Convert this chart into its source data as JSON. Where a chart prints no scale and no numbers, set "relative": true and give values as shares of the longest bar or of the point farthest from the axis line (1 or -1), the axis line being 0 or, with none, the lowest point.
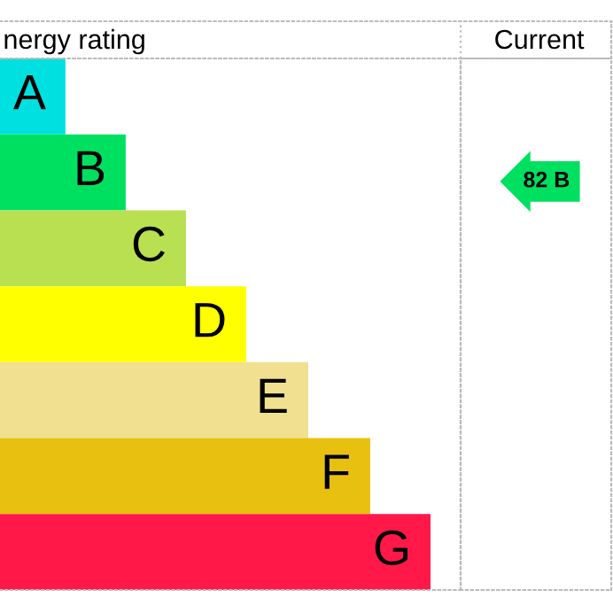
{
  "chart_data": {
    "type": "bar",
    "orientation": "horizontal",
    "relative": true,
    "title": "nergy rating",
    "categories": [
      "A",
      "B",
      "C",
      "D",
      "E",
      "F",
      "G"
    ],
    "values": [
      0.152,
      0.292,
      0.432,
      0.572,
      0.716,
      0.86,
      1
    ],
    "colors": [
      "#00e0e0",
      "#00e060",
      "#b8e050",
      "#ffff00",
      "#f0e090",
      "#e8c010",
      "#ff1848"
    ],
    "annotations": [
      "Current",
      "82 B"
    ]
  }
}
